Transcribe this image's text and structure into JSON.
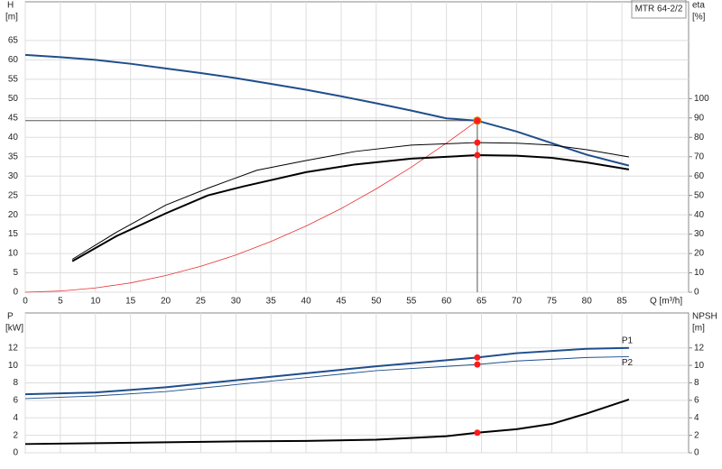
{
  "chart_data": [
    {
      "type": "line",
      "legend_text": "MTR 64-2/2",
      "y_label": "H",
      "y_unit": "[m]",
      "y2_label": "eta",
      "y2_unit": "[%]",
      "x_label": "Q [m³/h]",
      "xlim": [
        0,
        94.5
      ],
      "xticks": [
        0,
        5,
        10,
        15,
        20,
        25,
        30,
        35,
        40,
        45,
        50,
        55,
        60,
        65,
        70,
        75,
        80,
        85
      ],
      "ylim": [
        0,
        75
      ],
      "yticks": [
        0,
        5,
        10,
        15,
        20,
        25,
        30,
        35,
        40,
        45,
        50,
        55,
        60,
        65
      ],
      "y2lim": [
        0,
        150
      ],
      "y2ticks": [
        0,
        10,
        20,
        30,
        40,
        50,
        60,
        70,
        80,
        90,
        100
      ],
      "grid": true,
      "x_tick_labels": true,
      "duty_point": {
        "x": 64.4,
        "y": 44.3
      },
      "series": [
        {
          "color": "#1f4e8c",
          "line_width": 2,
          "x": [
            0,
            5,
            10,
            15,
            20,
            25,
            30,
            35,
            40,
            45,
            50,
            55,
            60,
            64.4,
            70,
            75,
            80,
            86
          ],
          "values": [
            61.3,
            60.7,
            60,
            59,
            57.8,
            56.6,
            55.3,
            53.8,
            52.3,
            50.6,
            48.8,
            46.9,
            44.9,
            44.3,
            41.5,
            38.5,
            35.5,
            32.7
          ]
        },
        {
          "color": "#e83030",
          "line_width": 0.8,
          "x": [
            0,
            5,
            10,
            15,
            20,
            25,
            30,
            35,
            40,
            45,
            50,
            55,
            60,
            64.4
          ],
          "values": [
            0,
            0.3,
            1.1,
            2.4,
            4.3,
            6.7,
            9.6,
            13.1,
            17.1,
            21.6,
            26.7,
            32.3,
            38.5,
            44.3
          ]
        },
        {
          "color": "#000000",
          "line_width": 1,
          "axis": "y2",
          "x": [
            6.7,
            13,
            20,
            26,
            33,
            40,
            47,
            55,
            64.4,
            70,
            75,
            80,
            86
          ],
          "values": [
            17,
            31,
            45,
            53.7,
            63,
            68,
            72.7,
            76,
            77.3,
            77,
            76,
            73.6,
            69.9
          ]
        },
        {
          "color": "#000000",
          "line_width": 2,
          "axis": "y2",
          "x": [
            6.7,
            13,
            20,
            26,
            31,
            40,
            47,
            55,
            64.4,
            70,
            75,
            80,
            86
          ],
          "values": [
            16,
            29,
            40.7,
            50,
            54.6,
            62,
            66,
            69,
            70.8,
            70.5,
            69.4,
            67,
            63.4
          ]
        }
      ]
    },
    {
      "type": "line",
      "y_label": "P",
      "y_unit": "[kW]",
      "y2_label": "NPSH",
      "y2_unit": "[m]",
      "xlim": [
        0,
        94.5
      ],
      "xticks": [
        0,
        5,
        10,
        15,
        20,
        25,
        30,
        35,
        40,
        45,
        50,
        55,
        60,
        65,
        70,
        75,
        80,
        85
      ],
      "ylim": [
        0,
        16
      ],
      "yticks": [
        0,
        2,
        4,
        6,
        8,
        10,
        12
      ],
      "y2lim": [
        0,
        16
      ],
      "y2ticks": [
        0,
        2,
        4,
        6,
        8,
        10,
        12
      ],
      "grid": true,
      "x_tick_labels": false,
      "duty_x": 64.4,
      "series": [
        {
          "name": "P1",
          "color": "#1f4e8c",
          "line_width": 2,
          "x": [
            0,
            10,
            20,
            30,
            40,
            50,
            64.4,
            70,
            80,
            86
          ],
          "values": [
            6.7,
            6.9,
            7.5,
            8.3,
            9.1,
            9.9,
            10.9,
            11.4,
            11.9,
            12.0
          ]
        },
        {
          "name": "P2",
          "color": "#1f4e8c",
          "line_width": 1,
          "x": [
            0,
            10,
            20,
            30,
            40,
            50,
            64.4,
            70,
            80,
            86
          ],
          "values": [
            6.2,
            6.5,
            7.0,
            7.8,
            8.6,
            9.4,
            10.1,
            10.5,
            10.9,
            11.0
          ]
        },
        {
          "color": "#000000",
          "line_width": 2,
          "axis": "y2",
          "x": [
            0,
            10,
            20,
            30,
            40,
            50,
            60,
            64.4,
            70,
            75,
            80,
            86
          ],
          "values": [
            1.0,
            1.1,
            1.2,
            1.3,
            1.35,
            1.5,
            1.9,
            2.3,
            2.7,
            3.3,
            4.5,
            6.1
          ]
        }
      ]
    }
  ]
}
